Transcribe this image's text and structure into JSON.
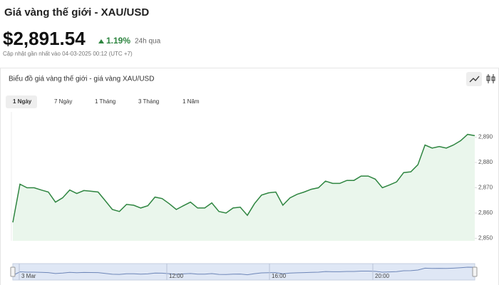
{
  "header": {
    "title": "Giá vàng thế giới - XAU/USD",
    "price": "$2,891.54",
    "change": "1.19%",
    "period": "24h qua",
    "updated": "Cập nhật gần nhất vào 04-03-2025 00:12 (UTC +7)"
  },
  "tabs": [
    "1 Ngày",
    "7 Ngày",
    "1 Tháng",
    "3 Tháng",
    "1 Năm"
  ],
  "chart_data": {
    "type": "area",
    "title": "Biểu đồ giá vàng thế giới - giá vàng XAU/USD",
    "values": [
      2856.3,
      2871.4,
      2870,
      2870,
      2869.1,
      2868.3,
      2864.3,
      2866,
      2869.1,
      2867.7,
      2868.9,
      2868.6,
      2868.3,
      2864.9,
      2861.4,
      2860.6,
      2863.4,
      2863.1,
      2862,
      2862.9,
      2866.3,
      2865.7,
      2863.7,
      2861.4,
      2862.9,
      2864.3,
      2862,
      2862,
      2864,
      2860.6,
      2860,
      2862,
      2862.3,
      2859.1,
      2863.7,
      2867.1,
      2868,
      2868.3,
      2863.1,
      2866,
      2867.4,
      2868.3,
      2869.4,
      2870,
      2872.6,
      2871.7,
      2871.7,
      2872.9,
      2872.9,
      2874.6,
      2874.6,
      2873.4,
      2870,
      2871.1,
      2872.3,
      2876,
      2876.3,
      2879.1,
      2886.9,
      2885.7,
      2886.3,
      2885.7,
      2886.9,
      2888.6,
      2891.1,
      2890.6
    ],
    "color": "#2e8540",
    "ylim": [
      2849,
      2900
    ],
    "yticks": [
      {
        "value": 2850,
        "label": "2,850"
      },
      {
        "value": 2860,
        "label": "2,860"
      },
      {
        "value": 2870,
        "label": "2,870"
      },
      {
        "value": 2880,
        "label": "2,880"
      },
      {
        "value": 2890,
        "label": "2,890"
      }
    ],
    "grid": false,
    "navigator_labels": [
      "3 Mar",
      "12:00",
      "16:00",
      "20:00"
    ]
  }
}
